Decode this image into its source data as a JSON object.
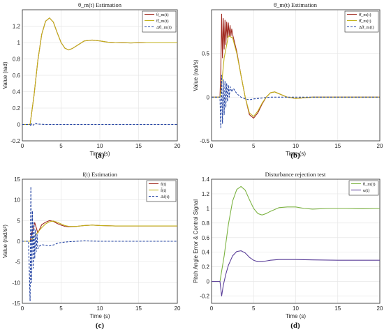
{
  "chart_data": [
    {
      "type": "line",
      "title": "θ_m(t) Estimation",
      "xlabel": "Time (s)",
      "ylabel": "Value (rad)",
      "panel_label": "(a)",
      "xlim": [
        0,
        20
      ],
      "ylim": [
        -0.2,
        1.4
      ],
      "xticks": [
        "0",
        "5",
        "10",
        "15",
        "20"
      ],
      "yticks": [
        "-0.2",
        "0",
        "0.2",
        "0.4",
        "0.6",
        "0.8",
        "1",
        "1.2"
      ],
      "ytick_values": [
        -0.2,
        0,
        0.2,
        0.4,
        0.6,
        0.8,
        1.0,
        1.2
      ],
      "grid": true,
      "legend_position": "top-right",
      "series": [
        {
          "name": "θ_m(t)",
          "color": "#a0281e",
          "dash": "solid",
          "x": [
            0,
            1,
            1.5,
            2,
            2.5,
            3,
            3.5,
            4,
            4.5,
            5,
            5.5,
            6,
            6.5,
            7,
            8,
            9,
            10,
            11,
            12,
            14,
            16,
            18,
            20
          ],
          "y": [
            0,
            0,
            0.35,
            0.78,
            1.1,
            1.26,
            1.3,
            1.25,
            1.12,
            1.0,
            0.93,
            0.91,
            0.93,
            0.96,
            1.02,
            1.03,
            1.02,
            1.005,
            1.0,
            0.995,
            1.0,
            1.0,
            1.0
          ]
        },
        {
          "name": "θ̂_m(t)",
          "color": "#c2b21a",
          "dash": "solid",
          "x": [
            0,
            1,
            1.5,
            2,
            2.5,
            3,
            3.5,
            4,
            4.5,
            5,
            5.5,
            6,
            6.5,
            7,
            8,
            9,
            10,
            11,
            12,
            14,
            16,
            18,
            20
          ],
          "y": [
            0,
            0,
            0.35,
            0.78,
            1.1,
            1.26,
            1.3,
            1.25,
            1.12,
            1.0,
            0.93,
            0.91,
            0.93,
            0.96,
            1.02,
            1.03,
            1.02,
            1.005,
            1.0,
            0.995,
            1.0,
            1.0,
            1.0
          ]
        },
        {
          "name": "Δθ_m(t)",
          "color": "#2343a3",
          "dash": "dash",
          "x": [
            0,
            1,
            1.1,
            1.2,
            1.4,
            1.6,
            2,
            3,
            4,
            6,
            8,
            10,
            15,
            20
          ],
          "y": [
            0,
            0,
            -0.02,
            0.01,
            -0.01,
            0.015,
            0.005,
            0.0,
            0.0,
            0.0,
            0.0,
            0.0,
            0.0,
            0.0
          ]
        }
      ]
    },
    {
      "type": "line",
      "title": "θ̇_m(t) Estimation",
      "xlabel": "Time (s)",
      "ylabel": "Value (rad/s)",
      "panel_label": "(b)",
      "xlim": [
        0,
        20
      ],
      "ylim": [
        -0.5,
        1.0
      ],
      "xticks": [
        "0",
        "5",
        "10",
        "15",
        "20"
      ],
      "yticks": [
        "-0.5",
        "0",
        "0.5"
      ],
      "ytick_values": [
        -0.5,
        0,
        0.5
      ],
      "grid": true,
      "legend_position": "top-right",
      "series": [
        {
          "name": "θ̇_m(t)",
          "color": "#a0281e",
          "dash": "solid",
          "x": [
            0,
            1,
            1.1,
            1.2,
            1.3,
            1.4,
            1.5,
            1.6,
            1.7,
            1.8,
            1.9,
            2.0,
            2.1,
            2.2,
            2.3,
            2.4,
            2.5,
            3,
            3.5,
            4,
            4.5,
            5,
            5.5,
            6,
            6.5,
            7,
            7.5,
            8,
            9,
            10,
            12,
            15,
            20
          ],
          "y": [
            0,
            0,
            0.3,
            0.95,
            0.45,
            0.9,
            0.55,
            0.88,
            0.6,
            0.86,
            0.68,
            0.85,
            0.7,
            0.82,
            0.7,
            0.78,
            0.72,
            0.52,
            0.25,
            0.0,
            -0.2,
            -0.24,
            -0.18,
            -0.08,
            0.0,
            0.05,
            0.06,
            0.04,
            0.0,
            -0.015,
            0.0,
            0.0,
            0.0
          ]
        },
        {
          "name": "θ̂̇_m(t)",
          "color": "#c2b21a",
          "dash": "solid",
          "x": [
            0,
            1,
            1.2,
            1.5,
            2,
            2.5,
            3,
            3.5,
            4,
            4.5,
            5,
            5.5,
            6,
            6.5,
            7,
            7.5,
            8,
            9,
            10,
            12,
            15,
            20
          ],
          "y": [
            0,
            0,
            0.15,
            0.45,
            0.7,
            0.68,
            0.5,
            0.25,
            0.0,
            -0.18,
            -0.22,
            -0.16,
            -0.07,
            0.0,
            0.05,
            0.06,
            0.04,
            0.0,
            -0.015,
            0.0,
            0.0,
            0.0
          ]
        },
        {
          "name": "Δθ̇_m(t)",
          "color": "#2343a3",
          "dash": "dash",
          "x": [
            0,
            1,
            1.1,
            1.2,
            1.3,
            1.4,
            1.5,
            1.6,
            1.7,
            1.8,
            1.9,
            2.0,
            2.1,
            2.2,
            2.4,
            2.6,
            3,
            3.5,
            4,
            4.5,
            5,
            6,
            7,
            8,
            10,
            15,
            20
          ],
          "y": [
            0,
            0,
            -0.35,
            0.25,
            -0.3,
            0.2,
            -0.2,
            0.18,
            -0.12,
            0.16,
            -0.05,
            0.14,
            0.0,
            0.12,
            0.06,
            0.1,
            0.04,
            0.0,
            -0.02,
            -0.03,
            -0.02,
            -0.01,
            0.0,
            0.0,
            0.0,
            0.0,
            0.0
          ]
        }
      ]
    },
    {
      "type": "line",
      "title": "f(t) Estimation",
      "xlabel": "Time (s)",
      "ylabel": "Value (rad/s²)",
      "panel_label": "(c)",
      "xlim": [
        0,
        20
      ],
      "ylim": [
        -15,
        15
      ],
      "xticks": [
        "0",
        "5",
        "10",
        "15",
        "20"
      ],
      "yticks": [
        "-15",
        "-10",
        "-5",
        "0",
        "5",
        "10",
        "15"
      ],
      "ytick_values": [
        -15,
        -10,
        -5,
        0,
        5,
        10,
        15
      ],
      "grid": true,
      "legend_position": "top-right",
      "series": [
        {
          "name": "f(t)",
          "color": "#a0281e",
          "dash": "solid",
          "x": [
            0,
            1,
            1.3,
            1.6,
            2,
            2.5,
            3,
            3.5,
            4,
            4.5,
            5,
            5.5,
            6,
            7,
            8,
            9,
            10,
            12,
            15,
            20
          ],
          "y": [
            0,
            0,
            2.5,
            4.5,
            2.0,
            4.0,
            4.6,
            5.0,
            4.8,
            4.3,
            3.9,
            3.6,
            3.5,
            3.6,
            3.8,
            3.9,
            3.8,
            3.7,
            3.7,
            3.7
          ]
        },
        {
          "name": "f̂(t)",
          "color": "#c2b21a",
          "dash": "solid",
          "x": [
            0,
            1,
            1.5,
            2,
            2.5,
            3,
            3.5,
            4,
            4.5,
            5,
            5.5,
            6,
            7,
            8,
            9,
            10,
            12,
            15,
            20
          ],
          "y": [
            0,
            0,
            1.0,
            2.2,
            3.3,
            4.2,
            4.7,
            4.9,
            4.6,
            4.2,
            3.8,
            3.6,
            3.6,
            3.8,
            3.9,
            3.8,
            3.7,
            3.7,
            3.7
          ]
        },
        {
          "name": "Δf(t)",
          "color": "#2343a3",
          "dash": "dash",
          "x": [
            0,
            0.8,
            1.0,
            1.1,
            1.2,
            1.3,
            1.4,
            1.5,
            1.6,
            1.7,
            1.8,
            1.9,
            2.0,
            2.2,
            2.5,
            3,
            3.5,
            4,
            4.5,
            5,
            6,
            7,
            8,
            10,
            15,
            20
          ],
          "y": [
            0,
            0,
            -14.5,
            13.2,
            -10,
            7.3,
            -6.5,
            4.5,
            -4.2,
            2.8,
            -2.5,
            1.6,
            -1.8,
            -1.2,
            -0.8,
            -1.0,
            -1.1,
            -0.9,
            -0.5,
            -0.3,
            -0.1,
            0.0,
            0.1,
            0.0,
            0.0,
            0.0
          ]
        }
      ]
    },
    {
      "type": "line",
      "title": "Disturbance rejection test",
      "xlabel": "Time (s)",
      "ylabel": "Pitch Angle Error & Control Signal",
      "panel_label": "(d)",
      "xlim": [
        0,
        20
      ],
      "ylim": [
        -0.3,
        1.4
      ],
      "xticks": [
        "0",
        "5",
        "10",
        "15",
        "20"
      ],
      "yticks": [
        "-0.2",
        "0",
        "0.2",
        "0.4",
        "0.6",
        "0.8",
        "1",
        "1.2",
        "1.4"
      ],
      "ytick_values": [
        -0.2,
        0,
        0.2,
        0.4,
        0.6,
        0.8,
        1.0,
        1.2,
        1.4
      ],
      "grid": true,
      "legend_position": "top-right",
      "series": [
        {
          "name": "θ_m(t)",
          "color": "#7cb342",
          "dash": "solid",
          "x": [
            0,
            1,
            1.5,
            2,
            2.5,
            3,
            3.5,
            4,
            4.5,
            5,
            5.5,
            6,
            6.5,
            7,
            8,
            9,
            10,
            11,
            12,
            14,
            16,
            18,
            20
          ],
          "y": [
            0,
            0,
            0.35,
            0.78,
            1.1,
            1.26,
            1.3,
            1.25,
            1.12,
            1.0,
            0.93,
            0.91,
            0.93,
            0.96,
            1.01,
            1.02,
            1.02,
            1.0,
            0.99,
            1.0,
            1.0,
            0.995,
            1.0
          ]
        },
        {
          "name": "u(t)",
          "color": "#5b3f99",
          "dash": "solid",
          "x": [
            0,
            1,
            1.2,
            1.4,
            1.7,
            2,
            2.5,
            3,
            3.5,
            4,
            4.5,
            5,
            5.5,
            6,
            6.5,
            7,
            8,
            9,
            10,
            12,
            15,
            20
          ],
          "y": [
            0,
            0,
            -0.2,
            -0.05,
            0.1,
            0.22,
            0.35,
            0.41,
            0.42,
            0.39,
            0.33,
            0.29,
            0.27,
            0.27,
            0.28,
            0.29,
            0.3,
            0.3,
            0.3,
            0.295,
            0.29,
            0.29
          ]
        }
      ]
    }
  ]
}
